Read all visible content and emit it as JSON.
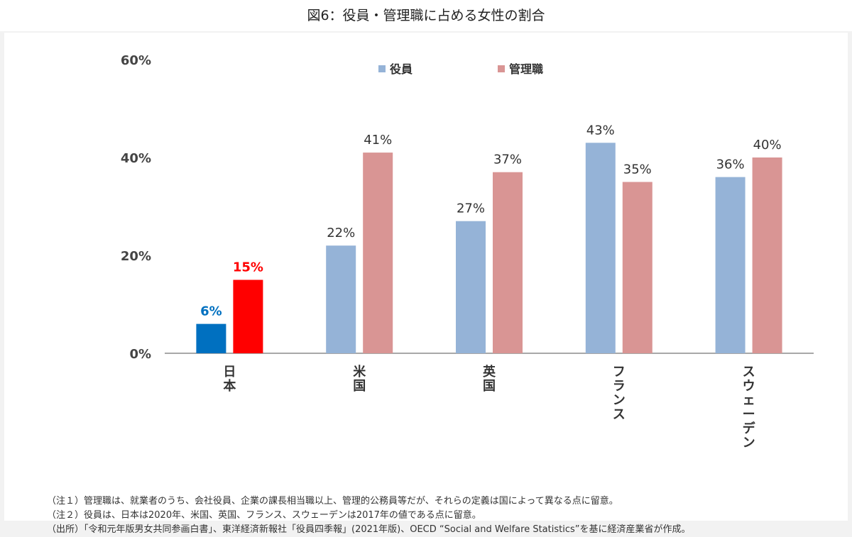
{
  "title": "図6：役員・管理職に占める女性の割合",
  "chart_data": {
    "type": "bar",
    "categories": [
      "日本",
      "米国",
      "英国",
      "フランス",
      "スウェーデン"
    ],
    "series": [
      {
        "name": "役員",
        "values": [
          6,
          22,
          27,
          43,
          36
        ],
        "data_labels": [
          "6%",
          "22%",
          "27%",
          "43%",
          "36%"
        ]
      },
      {
        "name": "管理職",
        "values": [
          15,
          41,
          37,
          35,
          40
        ],
        "data_labels": [
          "15%",
          "41%",
          "37%",
          "35%",
          "40%"
        ]
      }
    ],
    "ylim": [
      0,
      60
    ],
    "yticks": [
      0,
      20,
      40,
      60
    ],
    "ytick_labels": [
      "0%",
      "20%",
      "40%",
      "60%"
    ],
    "legend_position": "top-center",
    "grid": false,
    "colors": {
      "役員": "#95b3d7",
      "管理職": "#d99594",
      "highlight_役員": "#0070c0",
      "highlight_管理職": "#ff0000"
    },
    "highlight_category": "日本"
  },
  "notes": [
    "（注１）管理職は、就業者のうち、会社役員、企業の課長相当職以上、管理的公務員等だが、それらの定義は国によって異なる点に留意。",
    "（注２）役員は、日本は2020年、米国、英国、フランス、スウェーデンは2017年の値である点に留意。",
    "（出所）「令和元年版男女共同参画白書」、東洋経済新報社「役員四季報」(2021年版)、OECD “Social and Welfare Statistics”を基に経済産業省が作成。"
  ]
}
